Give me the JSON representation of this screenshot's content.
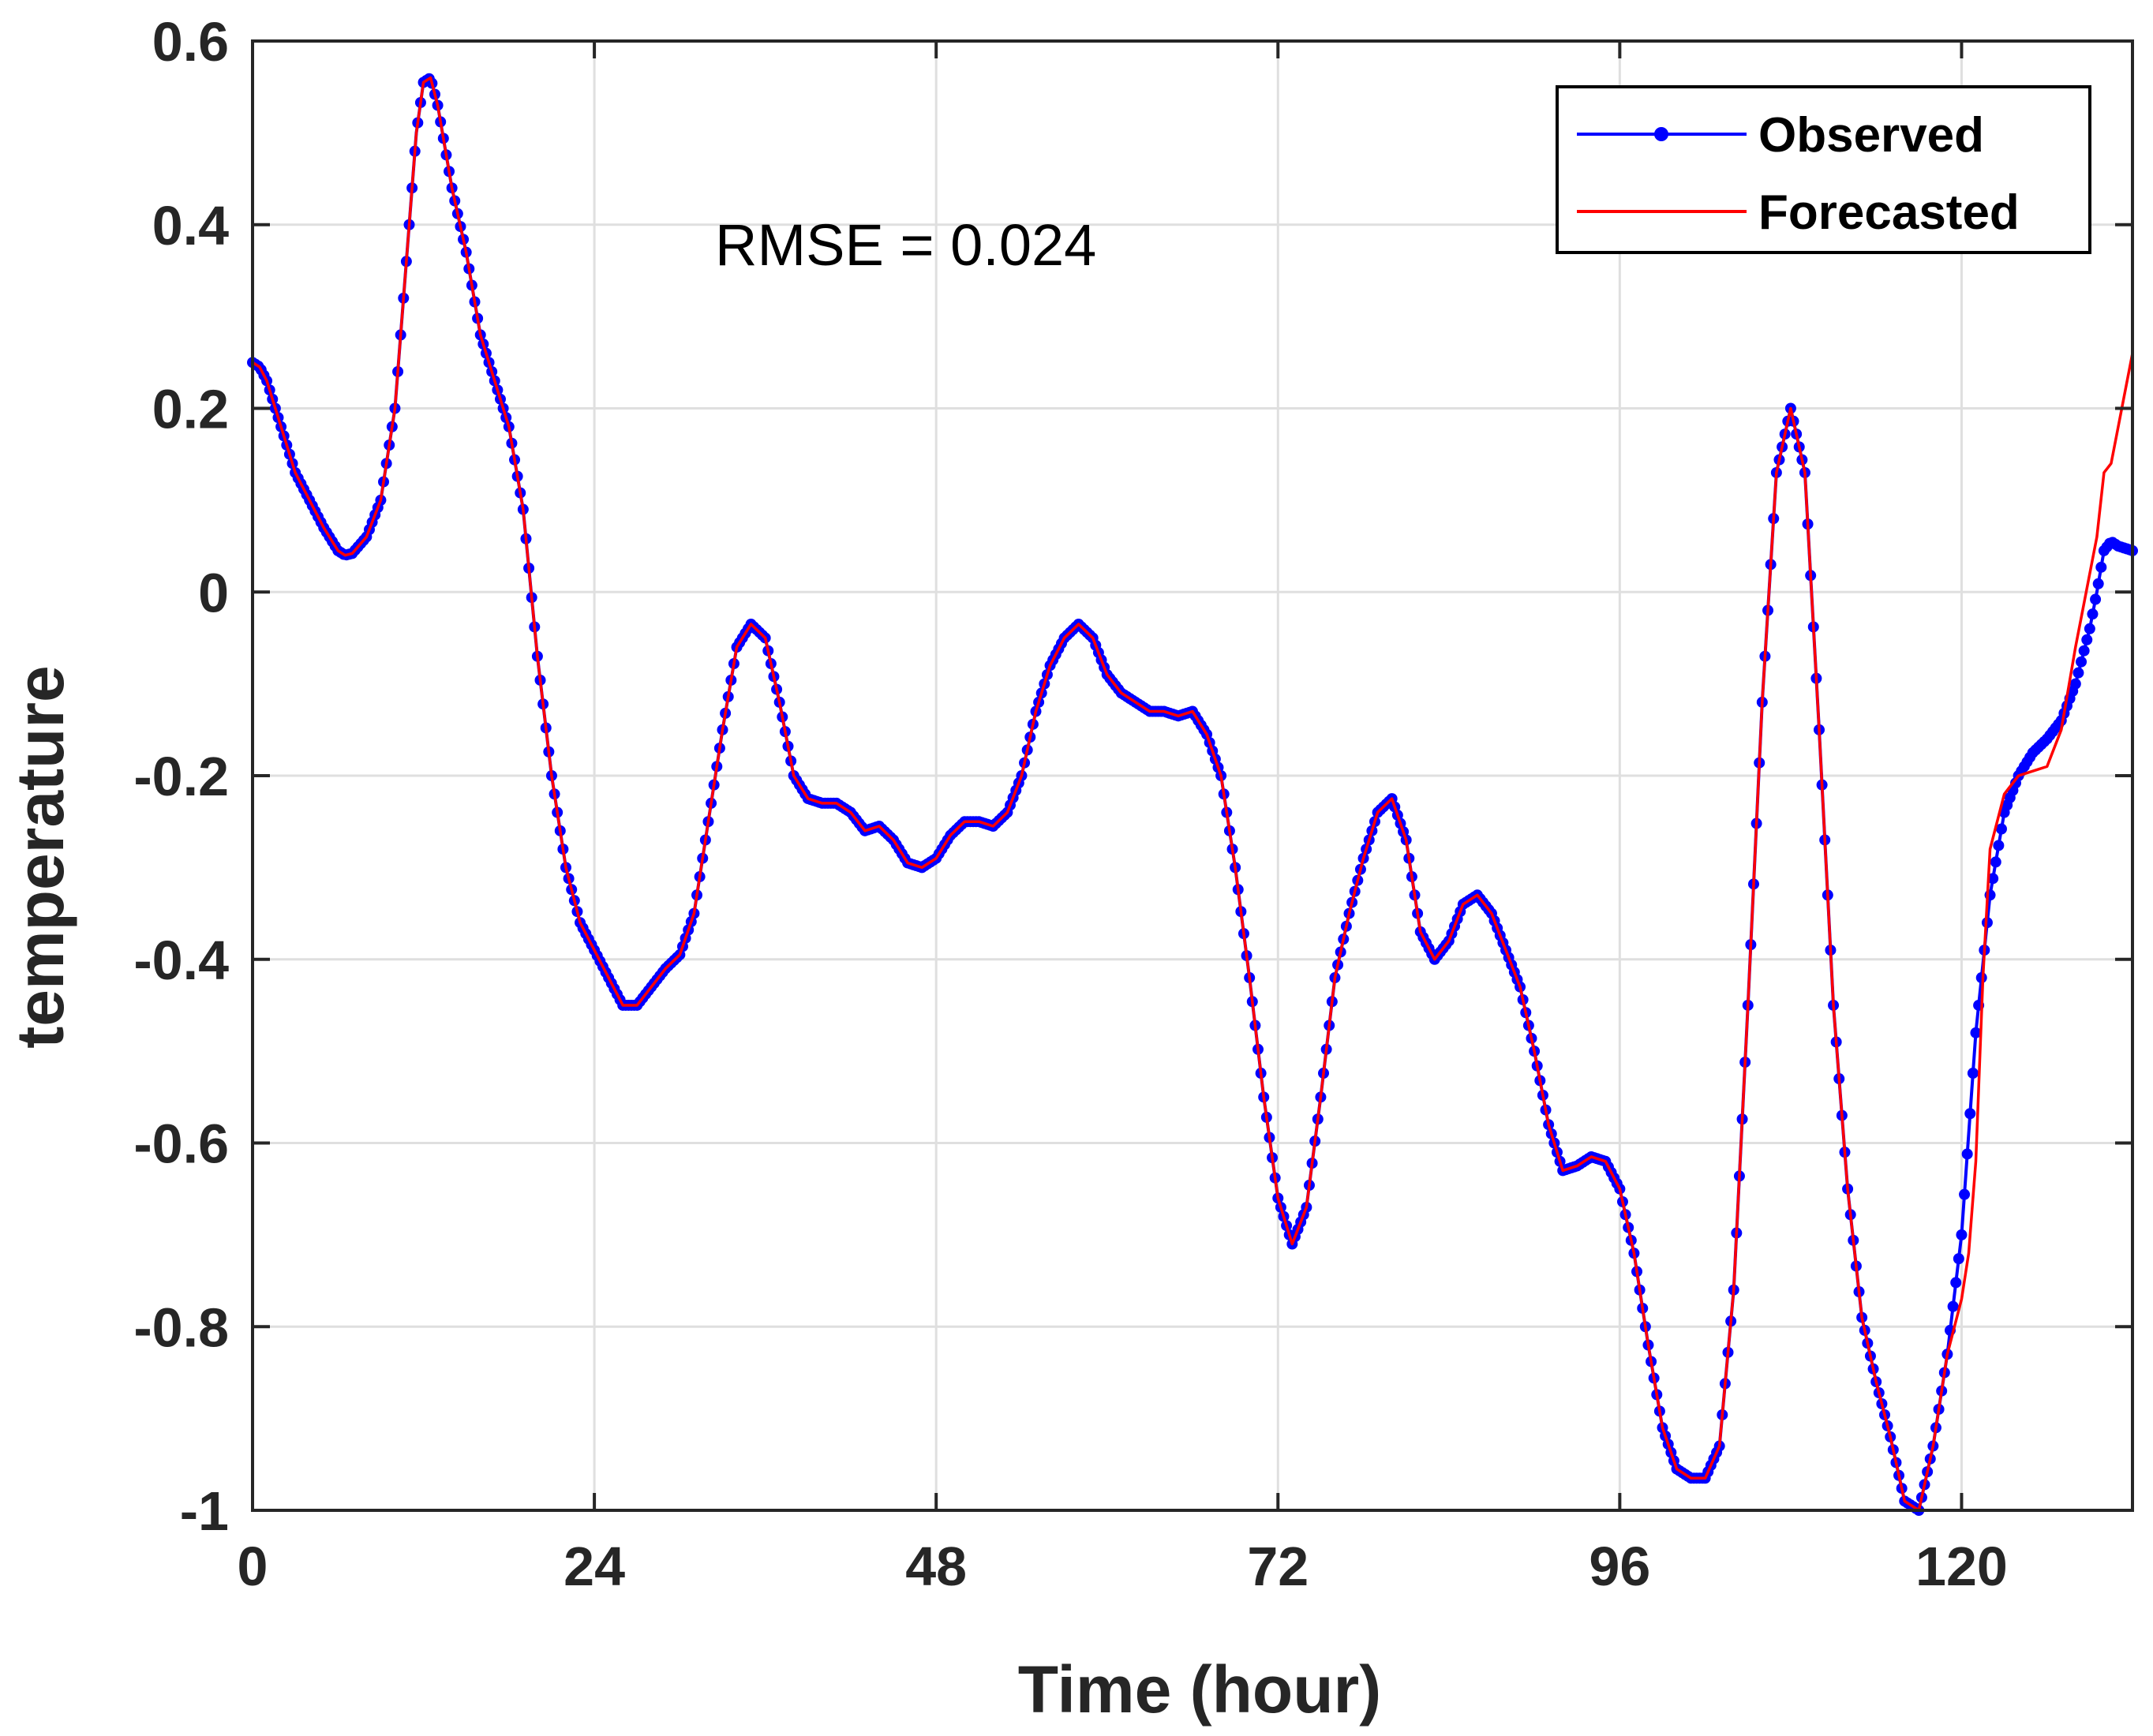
{
  "chart_data": {
    "type": "line",
    "title": "",
    "xlabel": "Time (hour)",
    "ylabel": "temperature",
    "xlim": [
      0,
      132
    ],
    "ylim": [
      -1,
      0.6
    ],
    "xticks": [
      0,
      24,
      48,
      72,
      96,
      120
    ],
    "xtick_labels": [
      "0",
      "24",
      "48",
      "72",
      "96",
      "120"
    ],
    "yticks": [
      0.6,
      0.4,
      0.2,
      0,
      -0.2,
      -0.4,
      -0.6,
      -0.8,
      -1
    ],
    "ytick_labels": [
      "0.6",
      "0.4",
      "0.2",
      "0",
      "-0.2",
      "-0.4",
      "-0.6",
      "-0.8",
      "-1"
    ],
    "grid": true,
    "legend_position": "top-right",
    "annotation": "RMSE = 0.024",
    "colors": {
      "observed": "#0000ff",
      "forecasted": "#ff0000",
      "axis": "#262626",
      "grid": "#dfdfdf"
    },
    "series": [
      {
        "name": "Observed",
        "style": "line-with-dots",
        "color": "#0000ff",
        "points": [
          [
            0,
            0.25
          ],
          [
            0.5,
            0.245
          ],
          [
            1,
            0.23
          ],
          [
            2,
            0.18
          ],
          [
            3,
            0.13
          ],
          [
            4,
            0.1
          ],
          [
            5,
            0.07
          ],
          [
            6,
            0.045
          ],
          [
            6.5,
            0.04
          ],
          [
            7,
            0.042
          ],
          [
            8,
            0.06
          ],
          [
            9,
            0.1
          ],
          [
            10,
            0.2
          ],
          [
            11,
            0.4
          ],
          [
            11.5,
            0.5
          ],
          [
            12,
            0.555
          ],
          [
            12.5,
            0.56
          ],
          [
            13,
            0.53
          ],
          [
            14,
            0.44
          ],
          [
            15,
            0.37
          ],
          [
            16,
            0.28
          ],
          [
            17,
            0.23
          ],
          [
            18,
            0.18
          ],
          [
            19,
            0.09
          ],
          [
            20,
            -0.07
          ],
          [
            21,
            -0.2
          ],
          [
            22,
            -0.3
          ],
          [
            23,
            -0.36
          ],
          [
            24,
            -0.39
          ],
          [
            25,
            -0.42
          ],
          [
            26,
            -0.45
          ],
          [
            27,
            -0.45
          ],
          [
            28,
            -0.43
          ],
          [
            29,
            -0.41
          ],
          [
            30,
            -0.395
          ],
          [
            31,
            -0.35
          ],
          [
            32,
            -0.25
          ],
          [
            33,
            -0.15
          ],
          [
            34,
            -0.06
          ],
          [
            35,
            -0.035
          ],
          [
            36,
            -0.05
          ],
          [
            37,
            -0.12
          ],
          [
            38,
            -0.2
          ],
          [
            39,
            -0.225
          ],
          [
            40,
            -0.23
          ],
          [
            41,
            -0.23
          ],
          [
            42,
            -0.24
          ],
          [
            43,
            -0.26
          ],
          [
            44,
            -0.255
          ],
          [
            45,
            -0.27
          ],
          [
            46,
            -0.295
          ],
          [
            47,
            -0.3
          ],
          [
            48,
            -0.29
          ],
          [
            49,
            -0.265
          ],
          [
            50,
            -0.25
          ],
          [
            51,
            -0.25
          ],
          [
            52,
            -0.255
          ],
          [
            53,
            -0.24
          ],
          [
            54,
            -0.2
          ],
          [
            55,
            -0.13
          ],
          [
            56,
            -0.08
          ],
          [
            57,
            -0.05
          ],
          [
            58,
            -0.035
          ],
          [
            59,
            -0.05
          ],
          [
            60,
            -0.09
          ],
          [
            61,
            -0.11
          ],
          [
            62,
            -0.12
          ],
          [
            63,
            -0.13
          ],
          [
            64,
            -0.13
          ],
          [
            65,
            -0.135
          ],
          [
            66,
            -0.13
          ],
          [
            67,
            -0.155
          ],
          [
            68,
            -0.2
          ],
          [
            69,
            -0.3
          ],
          [
            70,
            -0.42
          ],
          [
            71,
            -0.55
          ],
          [
            72,
            -0.66
          ],
          [
            73,
            -0.71
          ],
          [
            74,
            -0.67
          ],
          [
            75,
            -0.55
          ],
          [
            76,
            -0.42
          ],
          [
            77,
            -0.35
          ],
          [
            78,
            -0.29
          ],
          [
            79,
            -0.24
          ],
          [
            80,
            -0.225
          ],
          [
            81,
            -0.27
          ],
          [
            82,
            -0.37
          ],
          [
            83,
            -0.4
          ],
          [
            84,
            -0.38
          ],
          [
            85,
            -0.34
          ],
          [
            86,
            -0.33
          ],
          [
            87,
            -0.35
          ],
          [
            88,
            -0.39
          ],
          [
            89,
            -0.43
          ],
          [
            90,
            -0.5
          ],
          [
            91,
            -0.58
          ],
          [
            92,
            -0.63
          ],
          [
            93,
            -0.625
          ],
          [
            94,
            -0.615
          ],
          [
            95,
            -0.62
          ],
          [
            96,
            -0.65
          ],
          [
            97,
            -0.72
          ],
          [
            98,
            -0.82
          ],
          [
            99,
            -0.91
          ],
          [
            100,
            -0.955
          ],
          [
            101,
            -0.965
          ],
          [
            102,
            -0.965
          ],
          [
            103,
            -0.93
          ],
          [
            104,
            -0.76
          ],
          [
            105,
            -0.45
          ],
          [
            106,
            -0.12
          ],
          [
            107,
            0.13
          ],
          [
            108,
            0.2
          ],
          [
            109,
            0.13
          ],
          [
            110,
            -0.15
          ],
          [
            111,
            -0.45
          ],
          [
            112,
            -0.65
          ],
          [
            113,
            -0.79
          ],
          [
            114,
            -0.86
          ],
          [
            115,
            -0.92
          ],
          [
            116,
            -0.99
          ],
          [
            117,
            -1
          ],
          [
            118,
            -0.93
          ],
          [
            119,
            -0.83
          ],
          [
            120,
            -0.7
          ],
          [
            121,
            -0.48
          ],
          [
            122,
            -0.33
          ],
          [
            123,
            -0.24
          ],
          [
            124,
            -0.2
          ],
          [
            125,
            -0.175
          ],
          [
            126,
            -0.16
          ],
          [
            127,
            -0.14
          ],
          [
            128,
            -0.1
          ],
          [
            129,
            -0.04
          ],
          [
            129.5,
            0.0
          ],
          [
            130,
            0.045
          ],
          [
            130.5,
            0.055
          ],
          [
            131,
            0.05
          ],
          [
            132,
            0.045
          ]
        ]
      },
      {
        "name": "Forecasted",
        "style": "line",
        "color": "#ff0000",
        "points": [
          [
            0,
            0.25
          ],
          [
            0.5,
            0.245
          ],
          [
            1,
            0.23
          ],
          [
            2,
            0.18
          ],
          [
            3,
            0.13
          ],
          [
            4,
            0.1
          ],
          [
            5,
            0.07
          ],
          [
            6,
            0.045
          ],
          [
            6.5,
            0.04
          ],
          [
            7,
            0.042
          ],
          [
            8,
            0.06
          ],
          [
            9,
            0.1
          ],
          [
            10,
            0.2
          ],
          [
            11,
            0.4
          ],
          [
            11.5,
            0.5
          ],
          [
            12,
            0.555
          ],
          [
            12.5,
            0.56
          ],
          [
            13,
            0.53
          ],
          [
            14,
            0.44
          ],
          [
            15,
            0.37
          ],
          [
            16,
            0.28
          ],
          [
            17,
            0.23
          ],
          [
            18,
            0.18
          ],
          [
            19,
            0.09
          ],
          [
            20,
            -0.07
          ],
          [
            21,
            -0.2
          ],
          [
            22,
            -0.3
          ],
          [
            23,
            -0.36
          ],
          [
            24,
            -0.39
          ],
          [
            25,
            -0.42
          ],
          [
            26,
            -0.45
          ],
          [
            27,
            -0.45
          ],
          [
            28,
            -0.43
          ],
          [
            29,
            -0.41
          ],
          [
            30,
            -0.395
          ],
          [
            31,
            -0.35
          ],
          [
            32,
            -0.25
          ],
          [
            33,
            -0.15
          ],
          [
            34,
            -0.06
          ],
          [
            35,
            -0.035
          ],
          [
            36,
            -0.05
          ],
          [
            37,
            -0.12
          ],
          [
            38,
            -0.2
          ],
          [
            39,
            -0.225
          ],
          [
            40,
            -0.23
          ],
          [
            41,
            -0.23
          ],
          [
            42,
            -0.24
          ],
          [
            43,
            -0.26
          ],
          [
            44,
            -0.255
          ],
          [
            45,
            -0.27
          ],
          [
            46,
            -0.295
          ],
          [
            47,
            -0.3
          ],
          [
            48,
            -0.29
          ],
          [
            49,
            -0.265
          ],
          [
            50,
            -0.25
          ],
          [
            51,
            -0.25
          ],
          [
            52,
            -0.255
          ],
          [
            53,
            -0.24
          ],
          [
            54,
            -0.2
          ],
          [
            55,
            -0.13
          ],
          [
            56,
            -0.08
          ],
          [
            57,
            -0.05
          ],
          [
            58,
            -0.035
          ],
          [
            59,
            -0.05
          ],
          [
            60,
            -0.09
          ],
          [
            61,
            -0.11
          ],
          [
            62,
            -0.12
          ],
          [
            63,
            -0.13
          ],
          [
            64,
            -0.13
          ],
          [
            65,
            -0.135
          ],
          [
            66,
            -0.13
          ],
          [
            67,
            -0.155
          ],
          [
            68,
            -0.2
          ],
          [
            69,
            -0.3
          ],
          [
            70,
            -0.42
          ],
          [
            71,
            -0.55
          ],
          [
            72,
            -0.66
          ],
          [
            73,
            -0.71
          ],
          [
            74,
            -0.67
          ],
          [
            75,
            -0.55
          ],
          [
            76,
            -0.42
          ],
          [
            77,
            -0.35
          ],
          [
            78,
            -0.29
          ],
          [
            79,
            -0.24
          ],
          [
            80,
            -0.225
          ],
          [
            81,
            -0.27
          ],
          [
            82,
            -0.37
          ],
          [
            83,
            -0.4
          ],
          [
            84,
            -0.38
          ],
          [
            85,
            -0.34
          ],
          [
            86,
            -0.33
          ],
          [
            87,
            -0.35
          ],
          [
            88,
            -0.39
          ],
          [
            89,
            -0.43
          ],
          [
            90,
            -0.5
          ],
          [
            91,
            -0.58
          ],
          [
            92,
            -0.63
          ],
          [
            93,
            -0.625
          ],
          [
            94,
            -0.615
          ],
          [
            95,
            -0.62
          ],
          [
            96,
            -0.65
          ],
          [
            97,
            -0.72
          ],
          [
            98,
            -0.82
          ],
          [
            99,
            -0.91
          ],
          [
            100,
            -0.955
          ],
          [
            101,
            -0.965
          ],
          [
            102,
            -0.965
          ],
          [
            103,
            -0.93
          ],
          [
            104,
            -0.76
          ],
          [
            105,
            -0.45
          ],
          [
            106,
            -0.12
          ],
          [
            107,
            0.13
          ],
          [
            108,
            0.2
          ],
          [
            109,
            0.13
          ],
          [
            110,
            -0.15
          ],
          [
            111,
            -0.45
          ],
          [
            112,
            -0.65
          ],
          [
            113,
            -0.79
          ],
          [
            114,
            -0.86
          ],
          [
            115,
            -0.92
          ],
          [
            116,
            -0.99
          ],
          [
            117,
            -1
          ],
          [
            118,
            -0.93
          ],
          [
            119,
            -0.83
          ],
          [
            120,
            -0.77
          ],
          [
            120.5,
            -0.72
          ],
          [
            121,
            -0.62
          ],
          [
            121.5,
            -0.42
          ],
          [
            122,
            -0.28
          ],
          [
            123,
            -0.22
          ],
          [
            124,
            -0.2
          ],
          [
            125,
            -0.195
          ],
          [
            126,
            -0.19
          ],
          [
            127,
            -0.15
          ],
          [
            128,
            -0.06
          ],
          [
            129,
            0.02
          ],
          [
            129.5,
            0.06
          ],
          [
            130,
            0.13
          ],
          [
            130.5,
            0.14
          ],
          [
            131,
            0.18
          ],
          [
            132,
            0.26
          ]
        ]
      }
    ]
  }
}
